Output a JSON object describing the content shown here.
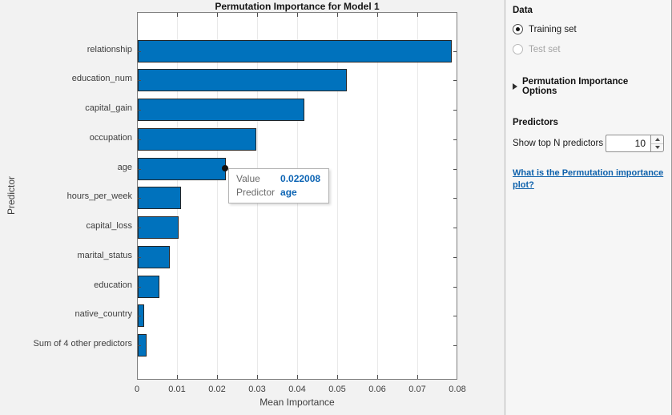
{
  "chart_data": {
    "type": "bar",
    "orientation": "horizontal",
    "title": "Permutation Importance for Model 1",
    "xlabel": "Mean Importance",
    "ylabel": "Predictor",
    "categories": [
      "relationship",
      "education_num",
      "capital_gain",
      "occupation",
      "age",
      "hours_per_week",
      "capital_loss",
      "marital_status",
      "education",
      "native_country",
      "Sum of 4 other predictors"
    ],
    "values": [
      0.0783,
      0.0522,
      0.0415,
      0.0296,
      0.022008,
      0.0107,
      0.0101,
      0.008,
      0.0054,
      0.0015,
      0.0022
    ],
    "xlim": [
      0,
      0.08
    ],
    "xticks": [
      0,
      0.01,
      0.02,
      0.03,
      0.04,
      0.05,
      0.06,
      0.07,
      0.08
    ],
    "xtick_labels": [
      "0",
      "0.01",
      "0.02",
      "0.03",
      "0.04",
      "0.05",
      "0.06",
      "0.07",
      "0.08"
    ],
    "grid": "vertical-on",
    "legend": "none",
    "bar_color": "#0072BD",
    "bar_edge_color": "#262626",
    "highlighted_point": {
      "category": "age",
      "category_index": 4,
      "value": 0.022008
    }
  },
  "datatip": {
    "value_label": "Value",
    "value": "0.022008",
    "predictor_label": "Predictor",
    "predictor": "age"
  },
  "panel": {
    "data_section": {
      "title": "Data",
      "options": [
        {
          "label": "Training set",
          "selected": true,
          "enabled": true
        },
        {
          "label": "Test set",
          "selected": false,
          "enabled": false
        }
      ]
    },
    "options_section": {
      "label": "Permutation Importance Options",
      "expander_icon": "right-triangle-icon",
      "expanded": false
    },
    "predictors_section": {
      "title": "Predictors",
      "show_top_label": "Show top N predictors",
      "show_top_value": "10",
      "spinner_icons": [
        "up-triangle-icon",
        "down-triangle-icon"
      ]
    },
    "help_link_label": "What is the Permutation importance plot?"
  },
  "colors": {
    "bar": "#0072BD",
    "figure_bg": "#f2f2f2",
    "panel_bg": "#f6f6f6",
    "plot_bg": "#ffffff",
    "grid": "#e9e9e9",
    "axis_box": "#7f7f7f",
    "datatip_value": "#0c64b4",
    "link": "#0f62ac",
    "disabled_text": "#a3a3a3"
  }
}
